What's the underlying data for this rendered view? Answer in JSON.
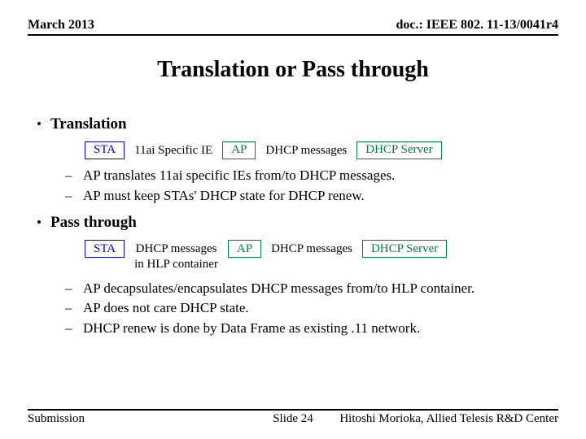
{
  "header": {
    "left": "March 2013",
    "right": "doc.: IEEE 802. 11-13/0041r4"
  },
  "title": "Translation or Pass through",
  "sections": [
    {
      "heading": "Translation",
      "diagram": {
        "sta": {
          "label": "STA",
          "color": "blue"
        },
        "link1": "11ai Specific IE",
        "ap": {
          "label": "AP",
          "color": "green"
        },
        "link2": "DHCP messages",
        "srv": {
          "label": "DHCP Server",
          "color": "green"
        }
      },
      "subs": [
        "AP translates 11ai specific IEs from/to DHCP messages.",
        "AP must keep STAs' DHCP state for DHCP renew."
      ]
    },
    {
      "heading": "Pass through",
      "diagram": {
        "sta": {
          "label": "STA",
          "color": "blue"
        },
        "link1_line1": "DHCP messages",
        "link1_line2": "in HLP container",
        "ap": {
          "label": "AP",
          "color": "green"
        },
        "link2": "DHCP messages",
        "srv": {
          "label": "DHCP Server",
          "color": "green"
        }
      },
      "subs": [
        "AP decapsulates/encapsulates DHCP messages from/to HLP container.",
        "AP does not care DHCP state.",
        "DHCP renew is done by Data Frame as existing .11 network."
      ]
    }
  ],
  "footer": {
    "left": "Submission",
    "center": "Slide 24",
    "right": "Hitoshi Morioka, Allied Telesis R&D Center"
  },
  "colors": {
    "blue": "#0000cc",
    "green": "#007f3f",
    "text": "#000000",
    "bg": "#ffffff"
  }
}
